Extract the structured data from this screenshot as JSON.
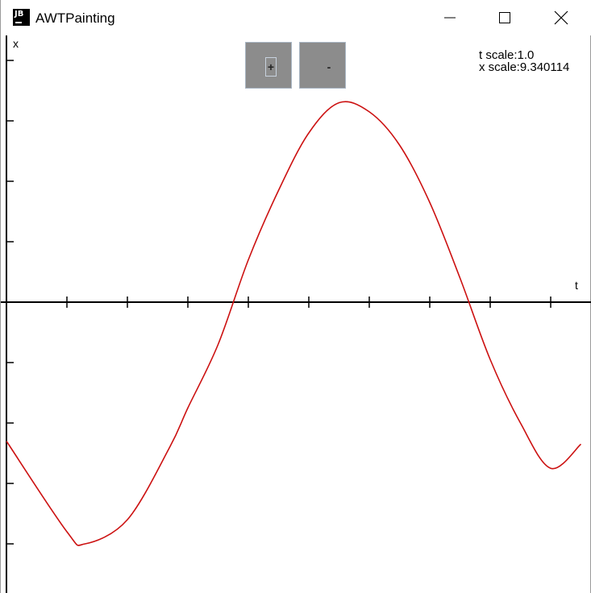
{
  "window": {
    "title": "AWTPainting",
    "app_icon_text": "JB",
    "controls": {
      "minimize": "minimize",
      "maximize": "maximize",
      "close": "close"
    }
  },
  "toolbar": {
    "plus_label": "+",
    "minus_label": "-"
  },
  "scales": {
    "t_scale": "t scale:1.0",
    "x_scale": "x scale:9.340114"
  },
  "axes": {
    "x_label": "x",
    "t_label": "t"
  },
  "colors": {
    "curve": "#cc1111",
    "axis": "#000000",
    "button_bg": "#8c8c8c"
  },
  "chart_data": {
    "type": "line",
    "series": [
      {
        "x": [
          0,
          1,
          1.3,
          2,
          2.7,
          3,
          3.5,
          4,
          4.5,
          5,
          5.5,
          6,
          6.5,
          7,
          7.5,
          8,
          8.5,
          9,
          9.5
        ],
        "y": [
          -2.3,
          -3.8,
          -4.0,
          -3.6,
          -2.4,
          -1.75,
          -0.7,
          0.7,
          1.85,
          2.8,
          3.3,
          3.15,
          2.6,
          1.65,
          0.4,
          -0.95,
          -2.0,
          -2.75,
          -2.35
        ]
      }
    ],
    "xlim": [
      0,
      9.7
    ],
    "ylim": [
      -4.7,
      4.3
    ],
    "x_ticks": [
      1,
      2,
      3,
      4,
      5,
      6,
      7,
      8,
      9
    ],
    "y_ticks": [
      -4,
      -3,
      -2,
      -1,
      1,
      2,
      3,
      4
    ],
    "grid": false
  }
}
